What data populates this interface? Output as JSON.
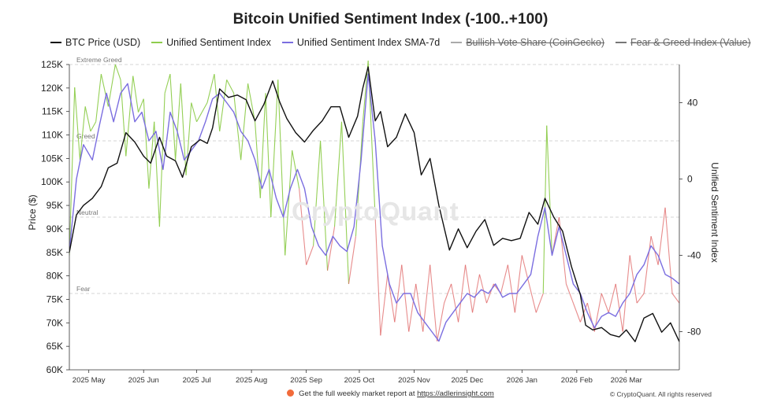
{
  "chart_data": {
    "type": "line",
    "title": "Bitcoin Unified Sentiment Index (-100..+100)",
    "ylabel_left": "Price ($)",
    "ylabel_right": "Unified Sentiment Index",
    "ylim_left": [
      60000,
      125000
    ],
    "ylim_right": [
      -100,
      60
    ],
    "left_ticks": [
      "125K",
      "120K",
      "115K",
      "110K",
      "105K",
      "100K",
      "95K",
      "90K",
      "85K",
      "80K",
      "75K",
      "70K",
      "65K",
      "60K"
    ],
    "left_tick_values": [
      125000,
      120000,
      115000,
      110000,
      105000,
      100000,
      95000,
      90000,
      85000,
      80000,
      75000,
      70000,
      65000,
      60000
    ],
    "right_ticks": [
      "40",
      "0",
      "-40",
      "-80"
    ],
    "right_tick_values": [
      40,
      0,
      -40,
      -80
    ],
    "x_ticks": [
      "2025 May",
      "2025 Jun",
      "2025 Jul",
      "2025 Aug",
      "2025 Sep",
      "2025 Oct",
      "2025 Nov",
      "2025 Dec",
      "2026 Jan",
      "2026 Feb",
      "2026 Mar"
    ],
    "x_tick_dates": [
      "2025-05-01",
      "2025-06-01",
      "2025-07-01",
      "2025-08-01",
      "2025-09-01",
      "2025-10-01",
      "2025-11-01",
      "2025-12-01",
      "2026-01-01",
      "2026-02-01",
      "2026-03-01"
    ],
    "x_range": [
      "2025-04-20",
      "2026-03-31"
    ],
    "zones": [
      {
        "label": "Extreme Greed",
        "value": 60
      },
      {
        "label": "Greed",
        "value": 20
      },
      {
        "label": "Neutral",
        "value": -20
      },
      {
        "label": "Fear",
        "value": -60
      }
    ],
    "legend_position": "top",
    "grid": false,
    "series": [
      {
        "name": "BTC Price (USD)",
        "axis": "left",
        "color": "#111111",
        "dates": [
          "2025-04-20",
          "2025-04-24",
          "2025-04-28",
          "2025-05-03",
          "2025-05-08",
          "2025-05-12",
          "2025-05-17",
          "2025-05-22",
          "2025-05-27",
          "2025-06-01",
          "2025-06-05",
          "2025-06-10",
          "2025-06-14",
          "2025-06-19",
          "2025-06-23",
          "2025-06-28",
          "2025-07-03",
          "2025-07-07",
          "2025-07-10",
          "2025-07-14",
          "2025-07-19",
          "2025-07-24",
          "2025-07-29",
          "2025-08-03",
          "2025-08-08",
          "2025-08-13",
          "2025-08-17",
          "2025-08-21",
          "2025-08-26",
          "2025-08-31",
          "2025-09-05",
          "2025-09-10",
          "2025-09-15",
          "2025-09-20",
          "2025-09-25",
          "2025-09-30",
          "2025-10-03",
          "2025-10-06",
          "2025-10-10",
          "2025-10-13",
          "2025-10-17",
          "2025-10-22",
          "2025-10-27",
          "2025-11-01",
          "2025-11-05",
          "2025-11-10",
          "2025-11-15",
          "2025-11-21",
          "2025-11-26",
          "2025-12-01",
          "2025-12-06",
          "2025-12-11",
          "2025-12-16",
          "2025-12-21",
          "2025-12-26",
          "2025-12-31",
          "2026-01-05",
          "2026-01-10",
          "2026-01-14",
          "2026-01-19",
          "2026-01-24",
          "2026-01-29",
          "2026-02-03",
          "2026-02-06",
          "2026-02-10",
          "2026-02-15",
          "2026-02-20",
          "2026-02-25",
          "2026-03-01",
          "2026-03-06",
          "2026-03-11",
          "2026-03-16",
          "2026-03-21",
          "2026-03-26",
          "2026-03-31"
        ],
        "values": [
          85000,
          93000,
          95000,
          96500,
          99000,
          103000,
          104000,
          110500,
          108500,
          105500,
          104000,
          109500,
          105500,
          104500,
          101000,
          107500,
          109000,
          108200,
          111500,
          119800,
          118000,
          118500,
          117500,
          113000,
          116500,
          121500,
          117000,
          113500,
          110500,
          108500,
          111000,
          113000,
          116000,
          116000,
          109500,
          114000,
          120000,
          124500,
          113000,
          115000,
          107500,
          109500,
          114500,
          110500,
          101500,
          105000,
          95000,
          85500,
          90000,
          86000,
          89500,
          92000,
          86500,
          88000,
          87500,
          88000,
          93500,
          91000,
          96500,
          92500,
          89500,
          82000,
          76000,
          69500,
          68500,
          69000,
          67500,
          67000,
          68500,
          66000,
          71000,
          72000,
          68000,
          70000,
          66000
        ]
      },
      {
        "name": "Unified Sentiment Index",
        "axis": "right",
        "colorPos": "#8fcd4d",
        "colorNeg": "#e06666",
        "dates": [
          "2025-04-20",
          "2025-04-23",
          "2025-04-26",
          "2025-04-29",
          "2025-05-02",
          "2025-05-05",
          "2025-05-08",
          "2025-05-12",
          "2025-05-16",
          "2025-05-19",
          "2025-05-22",
          "2025-05-26",
          "2025-05-29",
          "2025-06-01",
          "2025-06-04",
          "2025-06-07",
          "2025-06-10",
          "2025-06-13",
          "2025-06-16",
          "2025-06-19",
          "2025-06-22",
          "2025-06-25",
          "2025-06-28",
          "2025-07-01",
          "2025-07-04",
          "2025-07-07",
          "2025-07-11",
          "2025-07-14",
          "2025-07-18",
          "2025-07-22",
          "2025-07-26",
          "2025-07-30",
          "2025-08-03",
          "2025-08-06",
          "2025-08-09",
          "2025-08-12",
          "2025-08-16",
          "2025-08-20",
          "2025-08-24",
          "2025-08-28",
          "2025-09-01",
          "2025-09-05",
          "2025-09-09",
          "2025-09-13",
          "2025-09-17",
          "2025-09-21",
          "2025-09-25",
          "2025-09-29",
          "2025-10-03",
          "2025-10-06",
          "2025-10-10",
          "2025-10-13",
          "2025-10-17",
          "2025-10-21",
          "2025-10-25",
          "2025-10-29",
          "2025-11-02",
          "2025-11-06",
          "2025-11-10",
          "2025-11-14",
          "2025-11-18",
          "2025-11-22",
          "2025-11-26",
          "2025-11-30",
          "2025-12-04",
          "2025-12-08",
          "2025-12-12",
          "2025-12-16",
          "2025-12-20",
          "2025-12-24",
          "2025-12-28",
          "2026-01-01",
          "2026-01-05",
          "2026-01-09",
          "2026-01-13",
          "2026-01-15",
          "2026-01-18",
          "2026-01-22",
          "2026-01-26",
          "2026-01-30",
          "2026-02-03",
          "2026-02-07",
          "2026-02-11",
          "2026-02-15",
          "2026-02-19",
          "2026-02-23",
          "2026-02-27",
          "2026-03-03",
          "2026-03-07",
          "2026-03-11",
          "2026-03-15",
          "2026-03-19",
          "2026-03-23",
          "2026-03-27",
          "2026-03-31"
        ],
        "values": [
          -40,
          48,
          10,
          38,
          25,
          30,
          55,
          38,
          60,
          52,
          12,
          54,
          35,
          42,
          -5,
          30,
          -25,
          45,
          55,
          10,
          50,
          2,
          40,
          30,
          35,
          40,
          55,
          25,
          52,
          45,
          10,
          50,
          30,
          -10,
          45,
          -20,
          52,
          -40,
          15,
          -5,
          -45,
          -35,
          20,
          -48,
          -25,
          30,
          -55,
          -30,
          30,
          62,
          -20,
          -82,
          -50,
          -75,
          -45,
          -80,
          -55,
          -80,
          -45,
          -85,
          -65,
          -55,
          -75,
          -45,
          -70,
          -50,
          -65,
          -55,
          -60,
          -45,
          -70,
          -40,
          -55,
          -70,
          -60,
          28,
          -40,
          -20,
          -55,
          -65,
          -75,
          -65,
          -80,
          -60,
          -70,
          -55,
          -80,
          -40,
          -65,
          -60,
          -30,
          -45,
          -15,
          -60,
          -65
        ]
      },
      {
        "name": "Unified Sentiment Index SMA-7d",
        "axis": "right",
        "color": "#7b6ee0",
        "dates": [
          "2025-04-20",
          "2025-04-24",
          "2025-04-28",
          "2025-05-03",
          "2025-05-07",
          "2025-05-11",
          "2025-05-15",
          "2025-05-19",
          "2025-05-23",
          "2025-05-27",
          "2025-05-31",
          "2025-06-04",
          "2025-06-08",
          "2025-06-12",
          "2025-06-16",
          "2025-06-20",
          "2025-06-24",
          "2025-06-28",
          "2025-07-02",
          "2025-07-06",
          "2025-07-10",
          "2025-07-14",
          "2025-07-18",
          "2025-07-22",
          "2025-07-26",
          "2025-07-30",
          "2025-08-03",
          "2025-08-07",
          "2025-08-11",
          "2025-08-15",
          "2025-08-19",
          "2025-08-23",
          "2025-08-27",
          "2025-08-31",
          "2025-09-04",
          "2025-09-08",
          "2025-09-12",
          "2025-09-16",
          "2025-09-20",
          "2025-09-24",
          "2025-09-28",
          "2025-10-02",
          "2025-10-06",
          "2025-10-10",
          "2025-10-14",
          "2025-10-18",
          "2025-10-22",
          "2025-10-26",
          "2025-10-30",
          "2025-11-03",
          "2025-11-07",
          "2025-11-11",
          "2025-11-15",
          "2025-11-19",
          "2025-11-23",
          "2025-11-27",
          "2025-12-01",
          "2025-12-05",
          "2025-12-09",
          "2025-12-13",
          "2025-12-17",
          "2025-12-21",
          "2025-12-25",
          "2025-12-29",
          "2026-01-02",
          "2026-01-06",
          "2026-01-10",
          "2026-01-14",
          "2026-01-18",
          "2026-01-22",
          "2026-01-26",
          "2026-01-30",
          "2026-02-03",
          "2026-02-07",
          "2026-02-11",
          "2026-02-15",
          "2026-02-19",
          "2026-02-23",
          "2026-02-27",
          "2026-03-03",
          "2026-03-07",
          "2026-03-11",
          "2026-03-15",
          "2026-03-19",
          "2026-03-23",
          "2026-03-27",
          "2026-03-31"
        ],
        "values": [
          -38,
          0,
          18,
          10,
          28,
          45,
          30,
          45,
          50,
          30,
          35,
          20,
          25,
          5,
          35,
          25,
          10,
          15,
          20,
          30,
          42,
          45,
          40,
          35,
          25,
          20,
          10,
          -5,
          5,
          -10,
          -20,
          -5,
          5,
          -5,
          -25,
          -35,
          -40,
          -30,
          -35,
          -38,
          -25,
          10,
          55,
          20,
          -35,
          -55,
          -65,
          -60,
          -60,
          -70,
          -75,
          -80,
          -85,
          -75,
          -70,
          -65,
          -60,
          -62,
          -58,
          -60,
          -55,
          -62,
          -60,
          -60,
          -55,
          -50,
          -30,
          -15,
          -40,
          -25,
          -40,
          -55,
          -60,
          -70,
          -78,
          -72,
          -70,
          -72,
          -65,
          -60,
          -50,
          -45,
          -35,
          -40,
          -50,
          -52,
          -55
        ]
      },
      {
        "name": "Bullish Vote Share (CoinGecko)",
        "axis": "right",
        "color": "#aaaaaa",
        "hidden": true
      },
      {
        "name": "Fear & Greed Index (Value)",
        "axis": "right",
        "color": "#777777",
        "hidden": true
      }
    ]
  },
  "watermark": "CryptoQuant",
  "footer": {
    "prefix": "Get the full weekly market report at ",
    "link": "https://adlerinsight.com"
  },
  "copyright": "© CryptoQuant. All rights reserved"
}
